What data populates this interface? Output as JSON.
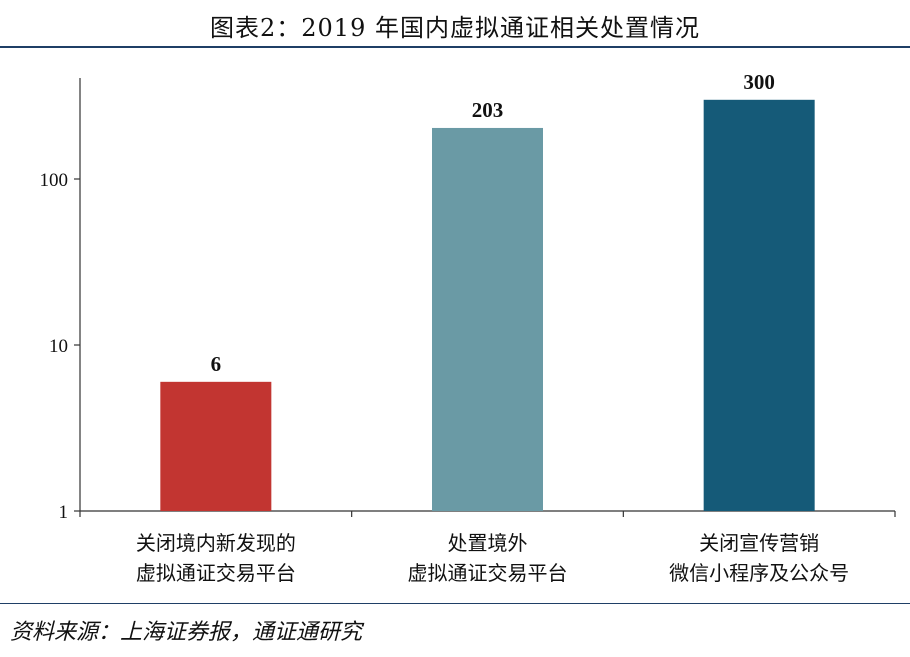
{
  "title": "图表2：2019 年国内虚拟通证相关处置情况",
  "source": "资料来源：上海证券报，通证通研究",
  "chart_data": {
    "type": "bar",
    "scale": "log",
    "ylim": [
      1,
      400
    ],
    "yticks": [
      1,
      10,
      100
    ],
    "grid": false,
    "legend": "none",
    "categories": [
      [
        "关闭境内新发现的",
        "虚拟通证交易平台"
      ],
      [
        "处置境外",
        "虚拟通证交易平台"
      ],
      [
        "关闭宣传营销",
        "微信小程序及公众号"
      ]
    ],
    "values": [
      6,
      203,
      300
    ],
    "colors": [
      "#c23531",
      "#6a9aa5",
      "#155a78"
    ]
  }
}
